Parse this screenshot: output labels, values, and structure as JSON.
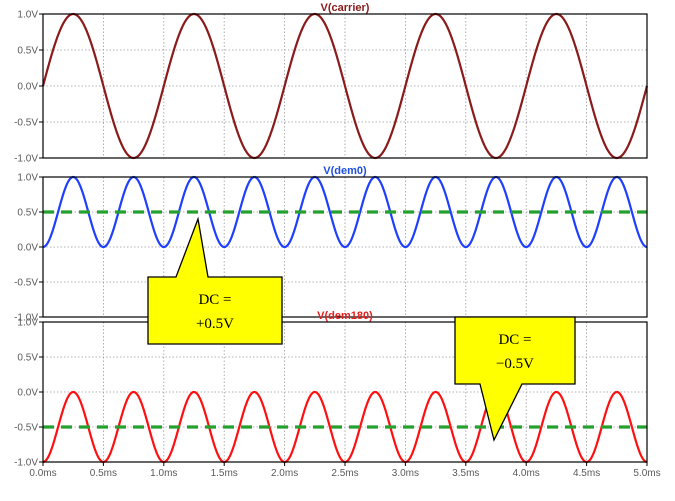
{
  "chart_data": [
    {
      "type": "line",
      "title": "V(carrier)",
      "title_color": "#8b1a1a",
      "xlim": [
        0,
        5.0
      ],
      "ylim": [
        -1.0,
        1.0
      ],
      "grid": true,
      "y_ticks": [
        "1.0V",
        "0.5V",
        "0.0V",
        "-0.5V",
        "-1.0V"
      ],
      "series": [
        {
          "name": "V(carrier)",
          "color": "#8b1a1a",
          "function": "sine",
          "frequency_per_ms": 1.0,
          "amplitude": 1.0,
          "offset": 0.0,
          "phase_shift_ms": 0.0
        }
      ]
    },
    {
      "type": "line",
      "title": "V(dem0)",
      "title_color": "#1f4fe0",
      "xlim": [
        0,
        5.0
      ],
      "ylim": [
        -1.0,
        1.0
      ],
      "grid": true,
      "y_ticks": [
        "1.0V",
        "0.5V",
        "0.0V",
        "-0.5V",
        "-1.0V"
      ],
      "series": [
        {
          "name": "V(dem0)",
          "color": "#1f3fff",
          "function": "sine",
          "frequency_per_ms": 2.0,
          "amplitude": 0.5,
          "offset": 0.5,
          "phase_shift_ms": 0.125
        },
        {
          "color": "#23a02e",
          "style": "dashed",
          "function": "constant",
          "value": 0.5
        }
      ],
      "annotation": {
        "line1": "DC =",
        "line2": "+0.5V"
      }
    },
    {
      "type": "line",
      "title": "V(dem180)",
      "title_color": "#e82020",
      "xlim": [
        0,
        5.0
      ],
      "ylim": [
        -1.0,
        1.0
      ],
      "grid": true,
      "y_ticks": [
        "1.0V",
        "0.5V",
        "0.0V",
        "-0.5V",
        "-1.0V"
      ],
      "x_ticks": [
        "0.0ms",
        "0.5ms",
        "1.0ms",
        "1.5ms",
        "2.0ms",
        "2.5ms",
        "3.0ms",
        "3.5ms",
        "4.0ms",
        "4.5ms",
        "5.0ms"
      ],
      "series": [
        {
          "name": "V(dem180)",
          "color": "#ff1010",
          "function": "sine",
          "frequency_per_ms": 2.0,
          "amplitude": 0.5,
          "offset": -0.5,
          "phase_shift_ms": 0.125
        },
        {
          "color": "#23a02e",
          "style": "dashed",
          "function": "constant",
          "value": -0.5
        }
      ],
      "annotation": {
        "line1": "DC =",
        "line2": "−0.5V"
      }
    }
  ],
  "colors": {
    "frame": "#000000",
    "grid": "#9a9a9a",
    "tick_text": "#5a5a5a",
    "callout_fill": "#ffff00"
  }
}
